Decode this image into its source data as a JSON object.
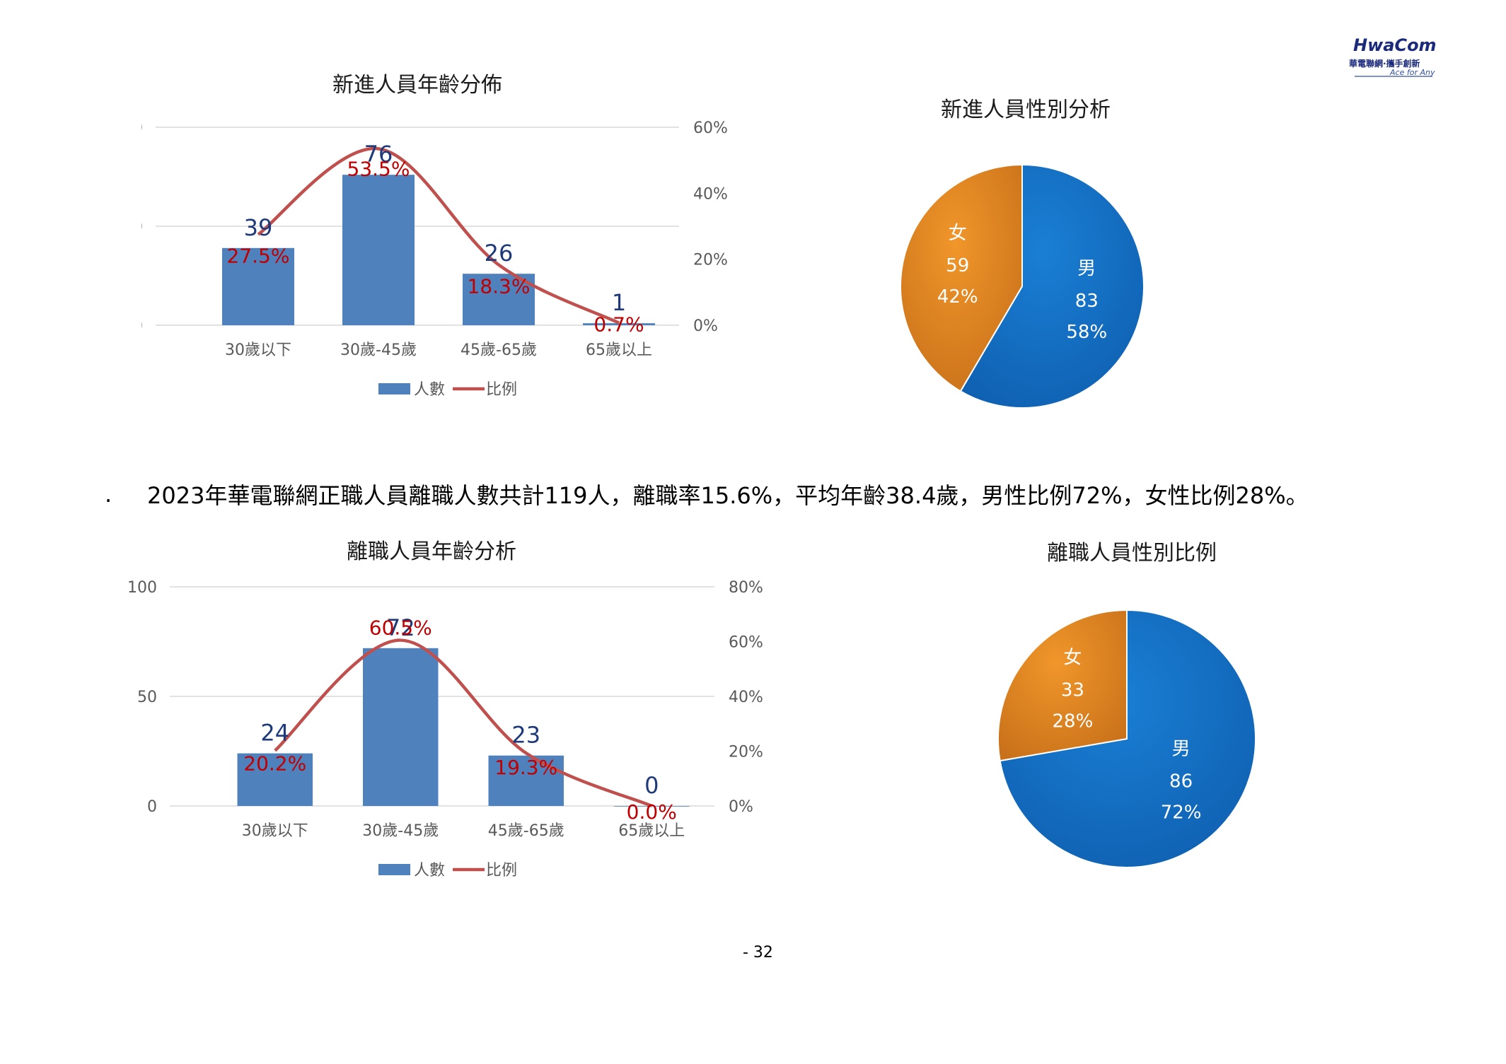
{
  "logo": {
    "brand": "HwaCom",
    "tagline_cn": "華電聯網·攜手創新",
    "tagline_en": "Ace for Any"
  },
  "summary_text": "2023年華電聯網正職人員離職人數共計119人，離職率15.6%，平均年齡38.4歲，男性比例72%，女性比例28%。",
  "page_number": "- 32",
  "colors": {
    "bar": "#4f81bd",
    "line": "#c0504d",
    "count_label": "#1f3a7a",
    "pct_label": "#c00000",
    "male": "#1a7fd4",
    "female": "#f0962a"
  },
  "chart_data": [
    {
      "type": "bar",
      "title": "新進人員年齡分佈",
      "categories": [
        "30歲以下",
        "30歲-45歲",
        "45歲-65歲",
        "65歲以上"
      ],
      "series": [
        {
          "name": "人數",
          "type": "bar",
          "axis": "left",
          "values": [
            39,
            76,
            26,
            1
          ],
          "labels": [
            "39",
            "76",
            "26",
            "1"
          ]
        },
        {
          "name": "比例",
          "type": "line",
          "axis": "right",
          "values": [
            27.5,
            53.5,
            18.3,
            0.7
          ],
          "labels": [
            "27.5%",
            "53.5%",
            "18.3%",
            "0.7%"
          ]
        }
      ],
      "ylim": [
        0,
        100
      ],
      "yticks": [
        "0",
        "50",
        "100"
      ],
      "y2lim": [
        0,
        60
      ],
      "y2ticks": [
        "0%",
        "20%",
        "40%",
        "60%"
      ],
      "grid": true,
      "legend": "bottom"
    },
    {
      "type": "pie",
      "title": "新進人員性別分析",
      "slices": [
        {
          "label": "男",
          "value": 83,
          "percent": "58%",
          "display_value": "83",
          "color": "#1a7fd4"
        },
        {
          "label": "女",
          "value": 59,
          "percent": "42%",
          "display_value": "59",
          "color": "#f0962a"
        }
      ]
    },
    {
      "type": "bar",
      "title": "離職人員年齡分析",
      "categories": [
        "30歲以下",
        "30歲-45歲",
        "45歲-65歲",
        "65歲以上"
      ],
      "series": [
        {
          "name": "人數",
          "type": "bar",
          "axis": "left",
          "values": [
            24,
            72,
            23,
            0
          ],
          "labels": [
            "24",
            "72",
            "23",
            "0"
          ]
        },
        {
          "name": "比例",
          "type": "line",
          "axis": "right",
          "values": [
            20.2,
            60.5,
            19.3,
            0.0
          ],
          "labels": [
            "20.2%",
            "60.5%",
            "19.3%",
            "0.0%"
          ]
        }
      ],
      "ylim": [
        0,
        100
      ],
      "yticks": [
        "0",
        "50",
        "100"
      ],
      "y2lim": [
        0,
        80
      ],
      "y2ticks": [
        "0%",
        "20%",
        "40%",
        "60%",
        "80%"
      ],
      "grid": true,
      "legend": "bottom"
    },
    {
      "type": "pie",
      "title": "離職人員性別比例",
      "slices": [
        {
          "label": "男",
          "value": 86,
          "percent": "72%",
          "display_value": "86",
          "color": "#1a7fd4"
        },
        {
          "label": "女",
          "value": 33,
          "percent": "28%",
          "display_value": "33",
          "color": "#f0962a"
        }
      ]
    }
  ]
}
